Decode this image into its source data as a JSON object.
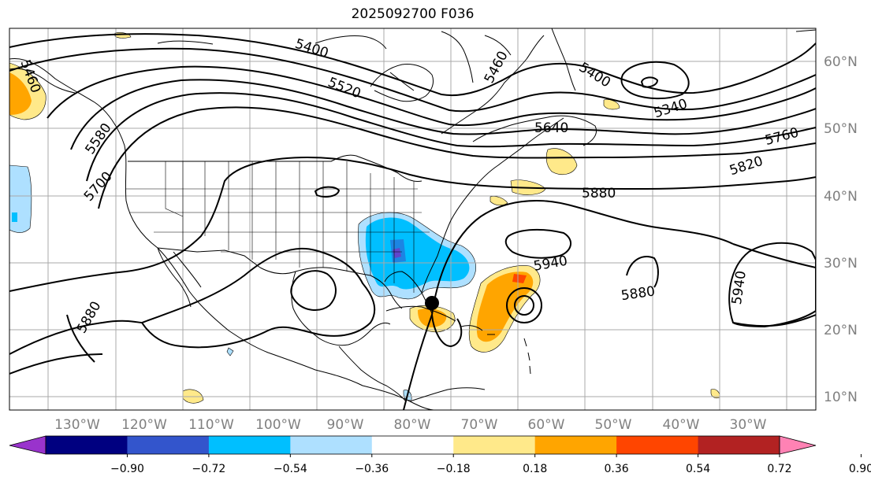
{
  "title": "2025092700 F036",
  "lon_ticks": [
    "130°W",
    "120°W",
    "110°W",
    "100°W",
    "90°W",
    "80°W",
    "70°W",
    "60°W",
    "50°W",
    "40°W",
    "30°W"
  ],
  "lat_ticks": [
    "60°N",
    "50°N",
    "40°N",
    "30°N",
    "20°N",
    "10°N"
  ],
  "colorbar": {
    "colors": [
      "#9933cc",
      "#000080",
      "#3355cc",
      "#00bfff",
      "#aee0ff",
      "#ffffff",
      "#ffe98a",
      "#ffa500",
      "#ff4500",
      "#b22222",
      "#ff82b4"
    ],
    "labels": [
      "−0.90",
      "−0.72",
      "−0.54",
      "−0.36",
      "−0.18",
      "0.18",
      "0.36",
      "0.54",
      "0.72",
      "0.90"
    ]
  },
  "contour_labels": [
    "5400",
    "5520",
    "5580",
    "5700",
    "5400",
    "5340",
    "5640",
    "5760",
    "5820",
    "5880",
    "5940",
    "5880",
    "5940",
    "5880",
    "5460",
    "5460"
  ],
  "storm_marker": "storm-center"
}
